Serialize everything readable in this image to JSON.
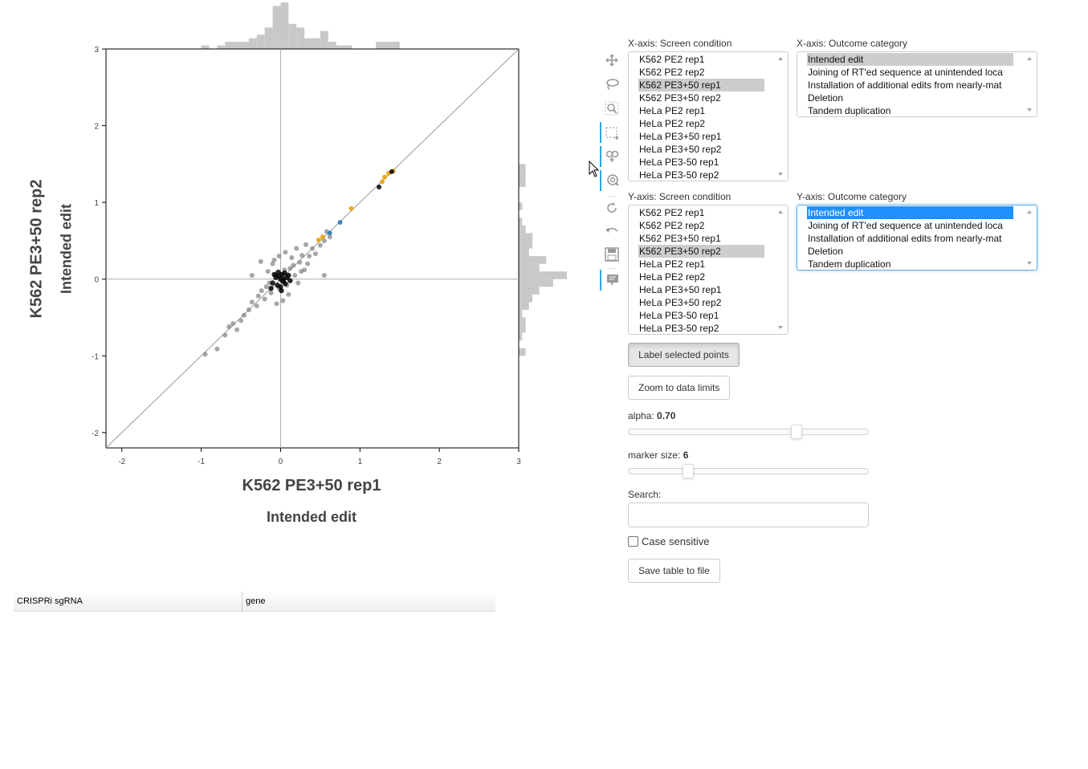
{
  "plot": {
    "x_condition": "K562 PE3+50 rep1",
    "x_outcome": "Intended edit",
    "y_condition": "K562 PE3+50 rep2",
    "y_outcome": "Intended edit"
  },
  "chart_data": {
    "type": "scatter",
    "title": "",
    "xlabel": "K562 PE3+50 rep1 / Intended edit",
    "ylabel": "K562 PE3+50 rep2 / Intended edit",
    "xlim": [
      -2.2,
      3.0
    ],
    "ylim": [
      -2.2,
      3.0
    ],
    "x_ticks": [
      -2,
      -1,
      0,
      1,
      2,
      3
    ],
    "y_ticks": [
      -2,
      -1,
      0,
      1,
      2,
      3
    ],
    "x_tick_labels": [
      "-2",
      "-1",
      "0",
      "1",
      "2",
      "3"
    ],
    "y_tick_labels": [
      "-2",
      "-1",
      "0",
      "1",
      "2",
      "3"
    ],
    "diagonal_line": true,
    "zero_lines": true,
    "colors": {
      "gray": "#808080",
      "black": "#000000",
      "orange": "#e69f00",
      "blue": "#1f77b4"
    },
    "highlighted_points": [
      {
        "x": 1.42,
        "y": 1.41,
        "color": "orange"
      },
      {
        "x": 1.36,
        "y": 1.38,
        "color": "orange"
      },
      {
        "x": 1.31,
        "y": 1.33,
        "color": "orange"
      },
      {
        "x": 1.28,
        "y": 1.27,
        "color": "orange"
      },
      {
        "x": 0.89,
        "y": 0.92,
        "color": "orange"
      },
      {
        "x": 0.53,
        "y": 0.55,
        "color": "orange"
      },
      {
        "x": 0.48,
        "y": 0.51,
        "color": "orange"
      },
      {
        "x": 0.75,
        "y": 0.74,
        "color": "blue"
      },
      {
        "x": 0.62,
        "y": 0.6,
        "color": "blue"
      },
      {
        "x": 1.24,
        "y": 1.2,
        "color": "black"
      },
      {
        "x": 1.4,
        "y": 1.4,
        "color": "black"
      }
    ],
    "gray_points": [
      {
        "x": -0.95,
        "y": -0.98
      },
      {
        "x": -0.8,
        "y": -0.91
      },
      {
        "x": -0.7,
        "y": -0.73
      },
      {
        "x": -0.65,
        "y": -0.62
      },
      {
        "x": -0.6,
        "y": -0.58
      },
      {
        "x": -0.55,
        "y": -0.66
      },
      {
        "x": -0.5,
        "y": -0.54
      },
      {
        "x": -0.46,
        "y": -0.47
      },
      {
        "x": -0.4,
        "y": -0.4
      },
      {
        "x": -0.36,
        "y": -0.3
      },
      {
        "x": -0.3,
        "y": -0.35
      },
      {
        "x": -0.28,
        "y": -0.22
      },
      {
        "x": -0.24,
        "y": -0.15
      },
      {
        "x": -0.2,
        "y": -0.26
      },
      {
        "x": -0.18,
        "y": -0.1
      },
      {
        "x": -0.16,
        "y": 0.1
      },
      {
        "x": -0.12,
        "y": -0.18
      },
      {
        "x": -0.1,
        "y": 0.2
      },
      {
        "x": -0.25,
        "y": 0.23
      },
      {
        "x": -0.08,
        "y": 0.25
      },
      {
        "x": -0.05,
        "y": -0.32
      },
      {
        "x": -0.02,
        "y": 0.3
      },
      {
        "x": 0.03,
        "y": -0.28
      },
      {
        "x": 0.06,
        "y": 0.35
      },
      {
        "x": 0.1,
        "y": -0.2
      },
      {
        "x": 0.14,
        "y": 0.28
      },
      {
        "x": 0.18,
        "y": 0.05
      },
      {
        "x": 0.2,
        "y": 0.4
      },
      {
        "x": 0.24,
        "y": 0.22
      },
      {
        "x": 0.27,
        "y": 0.31
      },
      {
        "x": 0.3,
        "y": 0.12
      },
      {
        "x": 0.32,
        "y": 0.45
      },
      {
        "x": 0.36,
        "y": 0.3
      },
      {
        "x": 0.4,
        "y": 0.4
      },
      {
        "x": 0.44,
        "y": 0.33
      },
      {
        "x": 0.5,
        "y": 0.44
      },
      {
        "x": 0.55,
        "y": 0.5
      },
      {
        "x": 0.58,
        "y": 0.62
      },
      {
        "x": 0.62,
        "y": 0.55
      },
      {
        "x": 0.55,
        "y": 0.05
      },
      {
        "x": -0.36,
        "y": 0.05
      },
      {
        "x": 0.22,
        "y": -0.05
      },
      {
        "x": -0.14,
        "y": -0.05
      },
      {
        "x": 0.12,
        "y": 0.14
      },
      {
        "x": 0.16,
        "y": 0.18
      },
      {
        "x": 0.05,
        "y": 0.12
      },
      {
        "x": -0.02,
        "y": -0.12
      },
      {
        "x": 0.08,
        "y": -0.08
      },
      {
        "x": 0.26,
        "y": 0.1
      },
      {
        "x": -0.06,
        "y": 0.05
      },
      {
        "x": 0.34,
        "y": 0.2
      }
    ],
    "black_points": [
      {
        "x": -0.1,
        "y": -0.05
      },
      {
        "x": -0.06,
        "y": 0.02
      },
      {
        "x": -0.04,
        "y": -0.08
      },
      {
        "x": -0.02,
        "y": 0.04
      },
      {
        "x": 0.0,
        "y": 0.0
      },
      {
        "x": 0.0,
        "y": -0.1
      },
      {
        "x": 0.02,
        "y": 0.06
      },
      {
        "x": 0.03,
        "y": -0.03
      },
      {
        "x": 0.05,
        "y": 0.08
      },
      {
        "x": 0.06,
        "y": -0.06
      },
      {
        "x": 0.08,
        "y": 0.02
      },
      {
        "x": 0.1,
        "y": 0.05
      },
      {
        "x": -0.08,
        "y": 0.06
      },
      {
        "x": -0.12,
        "y": -0.12
      },
      {
        "x": 0.04,
        "y": 0.0
      },
      {
        "x": 0.12,
        "y": -0.02
      },
      {
        "x": -0.03,
        "y": 0.09
      },
      {
        "x": 0.01,
        "y": -0.15
      }
    ]
  },
  "toolbar": {
    "tools": [
      {
        "name": "pan-tool-icon",
        "active": false
      },
      {
        "name": "lasso-tool-icon",
        "active": false
      },
      {
        "name": "zoom-tool-icon",
        "active": false
      },
      {
        "name": "box-select-tool-icon",
        "active": true
      },
      {
        "name": "tap-tool-icon",
        "active": true
      },
      {
        "name": "wheel-zoom-tool-icon",
        "active": true
      },
      {
        "name": "reset-tool-icon",
        "active": false
      },
      {
        "name": "undo-tool-icon",
        "active": false
      },
      {
        "name": "save-tool-icon",
        "active": false
      },
      {
        "name": "hover-tool-icon",
        "active": true
      }
    ]
  },
  "controls": {
    "x_condition_label": "X-axis: Screen condition",
    "x_outcome_label": "X-axis: Outcome category",
    "y_condition_label": "Y-axis: Screen condition",
    "y_outcome_label": "Y-axis: Outcome category",
    "conditions": [
      "K562 PE2 rep1",
      "K562 PE2 rep2",
      "K562 PE3+50 rep1",
      "K562 PE3+50 rep2",
      "HeLa PE2 rep1",
      "HeLa PE2 rep2",
      "HeLa PE3+50 rep1",
      "HeLa PE3+50 rep2",
      "HeLa PE3-50 rep1",
      "HeLa PE3-50 rep2"
    ],
    "outcomes": [
      "Intended edit",
      "Joining of RT'ed sequence at unintended loca",
      "Installation of additional edits from nearly-mat",
      "Deletion",
      "Tandem duplication"
    ],
    "x_condition_selected": "K562 PE3+50 rep1",
    "y_condition_selected": "K562 PE3+50 rep2",
    "x_outcome_selected": "Intended edit",
    "y_outcome_selected": "Intended edit",
    "label_button": "Label selected points",
    "zoom_button": "Zoom to data limits",
    "alpha_label": "alpha: ",
    "alpha_value": "0.70",
    "alpha_fraction": 0.7,
    "marker_label": "marker size: ",
    "marker_value": "6",
    "marker_fraction": 0.25,
    "search_label": "Search:",
    "search_value": "",
    "case_label": "Case sensitive",
    "case_checked": false,
    "save_button": "Save table to file"
  },
  "table": {
    "columns": [
      "CRISPRi sgRNA",
      "gene"
    ]
  }
}
